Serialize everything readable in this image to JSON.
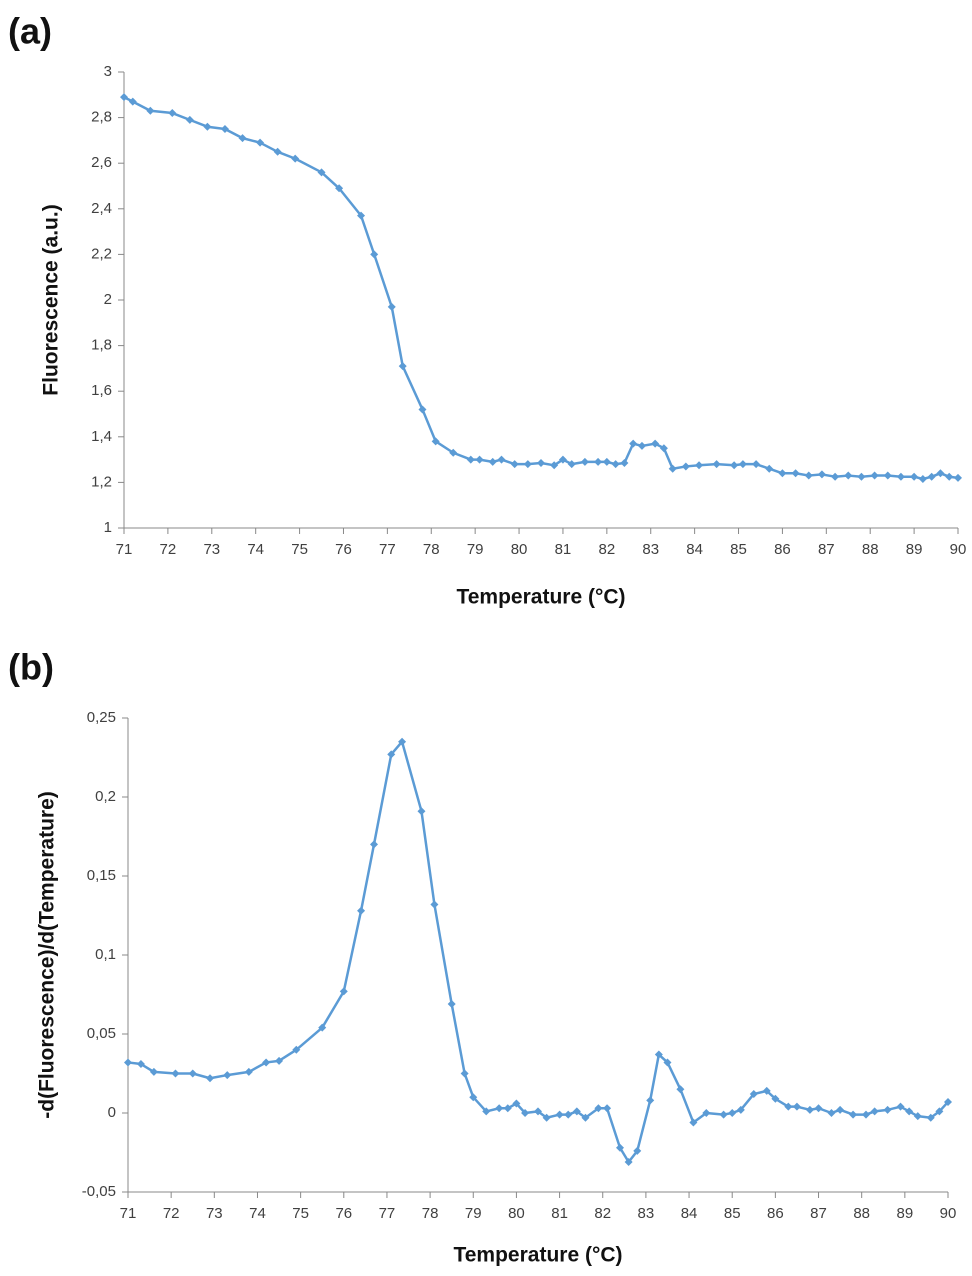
{
  "chart_data": [
    {
      "type": "line",
      "panel_label": "(a)",
      "xlabel": "Temperature (°C)",
      "ylabel": "Fluorescence (a.u.)",
      "color": "#5b9bd5",
      "x": [
        71.0,
        71.2,
        71.6,
        72.1,
        72.5,
        72.9,
        73.3,
        73.7,
        74.1,
        74.5,
        74.9,
        75.5,
        75.9,
        76.4,
        76.7,
        77.1,
        77.35,
        77.8,
        78.1,
        78.5,
        78.9,
        79.1,
        79.4,
        79.6,
        79.9,
        80.2,
        80.5,
        80.8,
        81.0,
        81.2,
        81.5,
        81.8,
        82.0,
        82.2,
        82.4,
        82.6,
        82.8,
        83.1,
        83.3,
        83.5,
        83.8,
        84.1,
        84.5,
        84.9,
        85.1,
        85.4,
        85.7,
        86.0,
        86.3,
        86.6,
        86.9,
        87.2,
        87.5,
        87.8,
        88.1,
        88.4,
        88.7,
        89.0,
        89.2,
        89.4,
        89.6,
        89.8,
        90.0
      ],
      "values": [
        2.89,
        2.87,
        2.83,
        2.82,
        2.79,
        2.76,
        2.75,
        2.71,
        2.69,
        2.65,
        2.62,
        2.56,
        2.49,
        2.37,
        2.2,
        1.97,
        1.71,
        1.52,
        1.38,
        1.33,
        1.3,
        1.3,
        1.29,
        1.3,
        1.28,
        1.28,
        1.285,
        1.275,
        1.3,
        1.28,
        1.29,
        1.29,
        1.29,
        1.28,
        1.285,
        1.37,
        1.36,
        1.37,
        1.35,
        1.26,
        1.27,
        1.275,
        1.28,
        1.275,
        1.28,
        1.28,
        1.26,
        1.24,
        1.24,
        1.23,
        1.235,
        1.225,
        1.23,
        1.225,
        1.23,
        1.23,
        1.225,
        1.225,
        1.215,
        1.225,
        1.24,
        1.225,
        1.22
      ],
      "xlim": [
        71,
        90
      ],
      "xticks": [
        71,
        72,
        73,
        74,
        75,
        76,
        77,
        78,
        79,
        80,
        81,
        82,
        83,
        84,
        85,
        86,
        87,
        88,
        89,
        90
      ],
      "ylim": [
        1,
        3
      ],
      "yticks": [
        1,
        {
          "value": 1.2,
          "label": "1,2"
        },
        {
          "value": 1.4,
          "label": "1,4"
        },
        {
          "value": 1.6,
          "label": "1,6"
        },
        {
          "value": 1.8,
          "label": "1,8"
        },
        2,
        {
          "value": 2.2,
          "label": "2,2"
        },
        {
          "value": 2.4,
          "label": "2,4"
        },
        {
          "value": 2.6,
          "label": "2,6"
        },
        {
          "value": 2.8,
          "label": "2,8"
        },
        3
      ],
      "grid": false
    },
    {
      "type": "line",
      "panel_label": "(b)",
      "xlabel": "Temperature (°C)",
      "ylabel": "-d(Fluorescence)/d(Temperature)",
      "color": "#5b9bd5",
      "x": [
        71.0,
        71.3,
        71.6,
        72.1,
        72.5,
        72.9,
        73.3,
        73.8,
        74.2,
        74.5,
        74.9,
        75.5,
        76.0,
        76.4,
        76.7,
        77.1,
        77.35,
        77.8,
        78.1,
        78.5,
        78.8,
        79.0,
        79.3,
        79.6,
        79.8,
        80.0,
        80.2,
        80.5,
        80.7,
        81.0,
        81.2,
        81.4,
        81.6,
        81.9,
        82.1,
        82.4,
        82.6,
        82.8,
        83.1,
        83.3,
        83.5,
        83.8,
        84.1,
        84.4,
        84.8,
        85.0,
        85.2,
        85.5,
        85.8,
        86.0,
        86.3,
        86.5,
        86.8,
        87.0,
        87.3,
        87.5,
        87.8,
        88.1,
        88.3,
        88.6,
        88.9,
        89.1,
        89.3,
        89.6,
        89.8,
        90.0
      ],
      "values": [
        0.032,
        0.031,
        0.026,
        0.025,
        0.025,
        0.022,
        0.024,
        0.026,
        0.032,
        0.033,
        0.04,
        0.054,
        0.077,
        0.128,
        0.17,
        0.227,
        0.235,
        0.191,
        0.132,
        0.069,
        0.025,
        0.01,
        0.001,
        0.003,
        0.003,
        0.006,
        0.0,
        0.001,
        -0.003,
        -0.001,
        -0.001,
        0.001,
        -0.003,
        0.003,
        0.003,
        -0.022,
        -0.031,
        -0.024,
        0.008,
        0.037,
        0.032,
        0.015,
        -0.006,
        0.0,
        -0.001,
        0.0,
        0.002,
        0.012,
        0.014,
        0.009,
        0.004,
        0.004,
        0.002,
        0.003,
        0.0,
        0.002,
        -0.001,
        -0.001,
        0.001,
        0.002,
        0.004,
        0.001,
        -0.002,
        -0.003,
        0.001,
        0.007
      ],
      "xlim": [
        71,
        90
      ],
      "xticks": [
        71,
        72,
        73,
        74,
        75,
        76,
        77,
        78,
        79,
        80,
        81,
        82,
        83,
        84,
        85,
        86,
        87,
        88,
        89,
        90
      ],
      "ylim": [
        -0.05,
        0.25
      ],
      "yticks": [
        {
          "value": -0.05,
          "label": "-0,05"
        },
        0,
        {
          "value": 0.05,
          "label": "0,05"
        },
        {
          "value": 0.1,
          "label": "0,1"
        },
        {
          "value": 0.15,
          "label": "0,15"
        },
        {
          "value": 0.2,
          "label": "0,2"
        },
        {
          "value": 0.25,
          "label": "0,25"
        }
      ],
      "grid": false
    }
  ]
}
